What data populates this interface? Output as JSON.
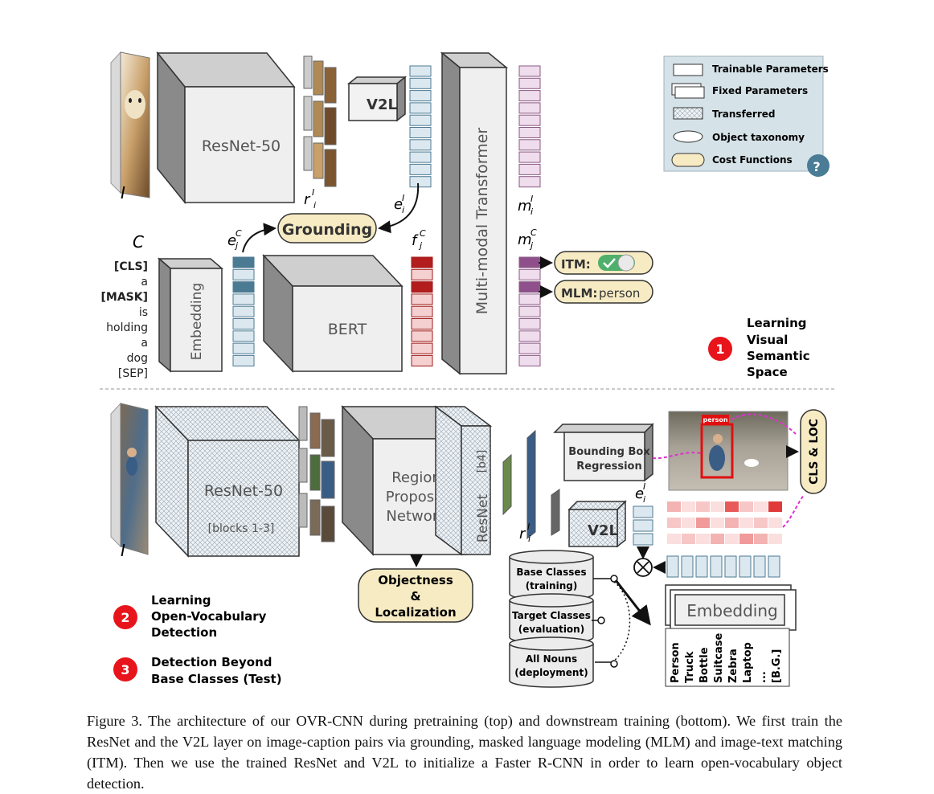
{
  "legend": {
    "trainable": "Trainable Parameters",
    "fixed": "Fixed Parameters",
    "transferred": "Transferred",
    "taxonomy": "Object taxonomy",
    "cost": "Cost Functions",
    "help": "?"
  },
  "top": {
    "image_label": "I",
    "resnet": "ResNet-50",
    "r_label": "r",
    "v2l": "V2L",
    "e_label": "e",
    "grounding": "Grounding",
    "mmt": "Multi-modal Transformer",
    "m_label": "m",
    "c_label": "C",
    "ej_label": "e",
    "f_label": "f",
    "mj_label": "m",
    "embedding": "Embedding",
    "bert": "BERT",
    "itm": "ITM:",
    "mlm": "MLM:",
    "mlm_value": "person",
    "tokens": [
      "[CLS]",
      "a",
      "[MASK]",
      "is",
      "holding",
      "a",
      "dog",
      "[SEP]"
    ],
    "step1": {
      "num": "1",
      "lines": [
        "Learning",
        "Visual",
        "Semantic",
        "Space"
      ]
    }
  },
  "bottom": {
    "image_label": "I",
    "resnet": "ResNet-50",
    "resnet_sub": "[blocks 1-3]",
    "rpn": [
      "Region",
      "Proposal",
      "Network"
    ],
    "resnet_b4": "ResNet",
    "b4": "[b4]",
    "bbox": [
      "Bounding Box",
      "Regression"
    ],
    "person_tag": "person",
    "cls_loc": "CLS & LOC",
    "r_label": "r",
    "e_label": "e",
    "v2l": "V2L",
    "objectness": [
      "Objectness",
      "&",
      "Localization"
    ],
    "embedding": "Embedding",
    "classes": [
      "Person",
      "Truck",
      "Bottle",
      "Suitcase",
      "Zebra",
      "Laptop",
      "...",
      "[B.G.]"
    ],
    "db": [
      {
        "title": "Base Classes",
        "sub": "(training)"
      },
      {
        "title": "Target Classes",
        "sub": "(evaluation)"
      },
      {
        "title": "All Nouns",
        "sub": "(deployment)"
      }
    ],
    "step2": {
      "num": "2",
      "lines": [
        "Learning",
        "Open-Vocabulary",
        "Detection"
      ]
    },
    "step3": {
      "num": "3",
      "lines": [
        "Detection Beyond",
        "Base Classes (Test)"
      ]
    }
  },
  "caption": "Figure 3. The architecture of our OVR-CNN during pretraining (top) and downstream training (bottom). We first train the ResNet and the V2L layer on image-caption pairs via grounding, masked language modeling (MLM) and image-text matching (ITM). Then we use the trained ResNet and V2L to initialize a Faster R-CNN in order to learn open-vocabulary object detection."
}
